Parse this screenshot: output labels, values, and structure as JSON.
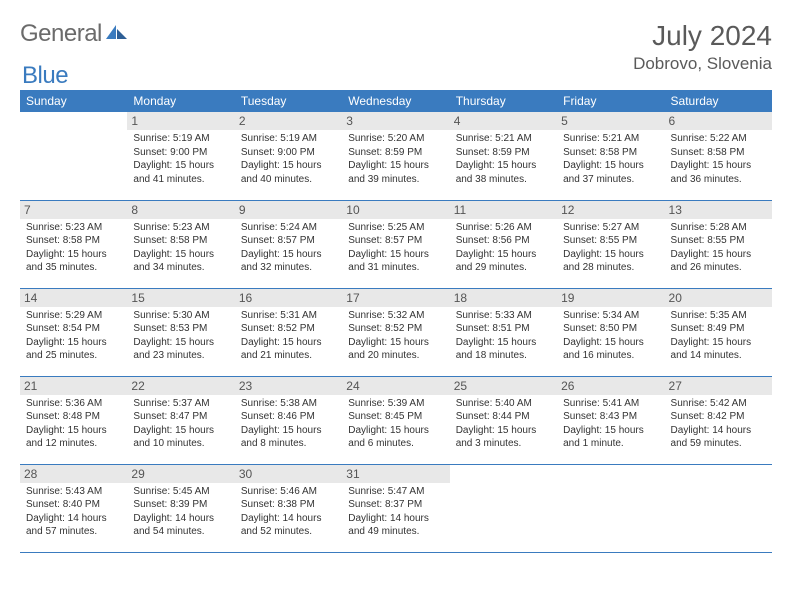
{
  "brand": {
    "text_general": "General",
    "text_blue": "Blue",
    "icon_color": "#3a7bbf"
  },
  "header": {
    "month_title": "July 2024",
    "location": "Dobrovo, Slovenia"
  },
  "styling": {
    "header_bg": "#3a7bbf",
    "header_text_color": "#ffffff",
    "day_number_bg": "#e8e8e8",
    "row_border_color": "#3a7bbf",
    "body_text_color": "#333333",
    "title_text_color": "#5a5a5a",
    "month_title_fontsize": 28,
    "location_fontsize": 17,
    "day_header_fontsize": 12,
    "day_number_fontsize": 12,
    "content_fontsize": 10
  },
  "day_headers": [
    "Sunday",
    "Monday",
    "Tuesday",
    "Wednesday",
    "Thursday",
    "Friday",
    "Saturday"
  ],
  "weeks": [
    [
      {
        "empty": true
      },
      {
        "num": "1",
        "sunrise": "Sunrise: 5:19 AM",
        "sunset": "Sunset: 9:00 PM",
        "daylight1": "Daylight: 15 hours",
        "daylight2": "and 41 minutes."
      },
      {
        "num": "2",
        "sunrise": "Sunrise: 5:19 AM",
        "sunset": "Sunset: 9:00 PM",
        "daylight1": "Daylight: 15 hours",
        "daylight2": "and 40 minutes."
      },
      {
        "num": "3",
        "sunrise": "Sunrise: 5:20 AM",
        "sunset": "Sunset: 8:59 PM",
        "daylight1": "Daylight: 15 hours",
        "daylight2": "and 39 minutes."
      },
      {
        "num": "4",
        "sunrise": "Sunrise: 5:21 AM",
        "sunset": "Sunset: 8:59 PM",
        "daylight1": "Daylight: 15 hours",
        "daylight2": "and 38 minutes."
      },
      {
        "num": "5",
        "sunrise": "Sunrise: 5:21 AM",
        "sunset": "Sunset: 8:58 PM",
        "daylight1": "Daylight: 15 hours",
        "daylight2": "and 37 minutes."
      },
      {
        "num": "6",
        "sunrise": "Sunrise: 5:22 AM",
        "sunset": "Sunset: 8:58 PM",
        "daylight1": "Daylight: 15 hours",
        "daylight2": "and 36 minutes."
      }
    ],
    [
      {
        "num": "7",
        "sunrise": "Sunrise: 5:23 AM",
        "sunset": "Sunset: 8:58 PM",
        "daylight1": "Daylight: 15 hours",
        "daylight2": "and 35 minutes."
      },
      {
        "num": "8",
        "sunrise": "Sunrise: 5:23 AM",
        "sunset": "Sunset: 8:58 PM",
        "daylight1": "Daylight: 15 hours",
        "daylight2": "and 34 minutes."
      },
      {
        "num": "9",
        "sunrise": "Sunrise: 5:24 AM",
        "sunset": "Sunset: 8:57 PM",
        "daylight1": "Daylight: 15 hours",
        "daylight2": "and 32 minutes."
      },
      {
        "num": "10",
        "sunrise": "Sunrise: 5:25 AM",
        "sunset": "Sunset: 8:57 PM",
        "daylight1": "Daylight: 15 hours",
        "daylight2": "and 31 minutes."
      },
      {
        "num": "11",
        "sunrise": "Sunrise: 5:26 AM",
        "sunset": "Sunset: 8:56 PM",
        "daylight1": "Daylight: 15 hours",
        "daylight2": "and 29 minutes."
      },
      {
        "num": "12",
        "sunrise": "Sunrise: 5:27 AM",
        "sunset": "Sunset: 8:55 PM",
        "daylight1": "Daylight: 15 hours",
        "daylight2": "and 28 minutes."
      },
      {
        "num": "13",
        "sunrise": "Sunrise: 5:28 AM",
        "sunset": "Sunset: 8:55 PM",
        "daylight1": "Daylight: 15 hours",
        "daylight2": "and 26 minutes."
      }
    ],
    [
      {
        "num": "14",
        "sunrise": "Sunrise: 5:29 AM",
        "sunset": "Sunset: 8:54 PM",
        "daylight1": "Daylight: 15 hours",
        "daylight2": "and 25 minutes."
      },
      {
        "num": "15",
        "sunrise": "Sunrise: 5:30 AM",
        "sunset": "Sunset: 8:53 PM",
        "daylight1": "Daylight: 15 hours",
        "daylight2": "and 23 minutes."
      },
      {
        "num": "16",
        "sunrise": "Sunrise: 5:31 AM",
        "sunset": "Sunset: 8:52 PM",
        "daylight1": "Daylight: 15 hours",
        "daylight2": "and 21 minutes."
      },
      {
        "num": "17",
        "sunrise": "Sunrise: 5:32 AM",
        "sunset": "Sunset: 8:52 PM",
        "daylight1": "Daylight: 15 hours",
        "daylight2": "and 20 minutes."
      },
      {
        "num": "18",
        "sunrise": "Sunrise: 5:33 AM",
        "sunset": "Sunset: 8:51 PM",
        "daylight1": "Daylight: 15 hours",
        "daylight2": "and 18 minutes."
      },
      {
        "num": "19",
        "sunrise": "Sunrise: 5:34 AM",
        "sunset": "Sunset: 8:50 PM",
        "daylight1": "Daylight: 15 hours",
        "daylight2": "and 16 minutes."
      },
      {
        "num": "20",
        "sunrise": "Sunrise: 5:35 AM",
        "sunset": "Sunset: 8:49 PM",
        "daylight1": "Daylight: 15 hours",
        "daylight2": "and 14 minutes."
      }
    ],
    [
      {
        "num": "21",
        "sunrise": "Sunrise: 5:36 AM",
        "sunset": "Sunset: 8:48 PM",
        "daylight1": "Daylight: 15 hours",
        "daylight2": "and 12 minutes."
      },
      {
        "num": "22",
        "sunrise": "Sunrise: 5:37 AM",
        "sunset": "Sunset: 8:47 PM",
        "daylight1": "Daylight: 15 hours",
        "daylight2": "and 10 minutes."
      },
      {
        "num": "23",
        "sunrise": "Sunrise: 5:38 AM",
        "sunset": "Sunset: 8:46 PM",
        "daylight1": "Daylight: 15 hours",
        "daylight2": "and 8 minutes."
      },
      {
        "num": "24",
        "sunrise": "Sunrise: 5:39 AM",
        "sunset": "Sunset: 8:45 PM",
        "daylight1": "Daylight: 15 hours",
        "daylight2": "and 6 minutes."
      },
      {
        "num": "25",
        "sunrise": "Sunrise: 5:40 AM",
        "sunset": "Sunset: 8:44 PM",
        "daylight1": "Daylight: 15 hours",
        "daylight2": "and 3 minutes."
      },
      {
        "num": "26",
        "sunrise": "Sunrise: 5:41 AM",
        "sunset": "Sunset: 8:43 PM",
        "daylight1": "Daylight: 15 hours",
        "daylight2": "and 1 minute."
      },
      {
        "num": "27",
        "sunrise": "Sunrise: 5:42 AM",
        "sunset": "Sunset: 8:42 PM",
        "daylight1": "Daylight: 14 hours",
        "daylight2": "and 59 minutes."
      }
    ],
    [
      {
        "num": "28",
        "sunrise": "Sunrise: 5:43 AM",
        "sunset": "Sunset: 8:40 PM",
        "daylight1": "Daylight: 14 hours",
        "daylight2": "and 57 minutes."
      },
      {
        "num": "29",
        "sunrise": "Sunrise: 5:45 AM",
        "sunset": "Sunset: 8:39 PM",
        "daylight1": "Daylight: 14 hours",
        "daylight2": "and 54 minutes."
      },
      {
        "num": "30",
        "sunrise": "Sunrise: 5:46 AM",
        "sunset": "Sunset: 8:38 PM",
        "daylight1": "Daylight: 14 hours",
        "daylight2": "and 52 minutes."
      },
      {
        "num": "31",
        "sunrise": "Sunrise: 5:47 AM",
        "sunset": "Sunset: 8:37 PM",
        "daylight1": "Daylight: 14 hours",
        "daylight2": "and 49 minutes."
      },
      {
        "empty": true
      },
      {
        "empty": true
      },
      {
        "empty": true
      }
    ]
  ]
}
